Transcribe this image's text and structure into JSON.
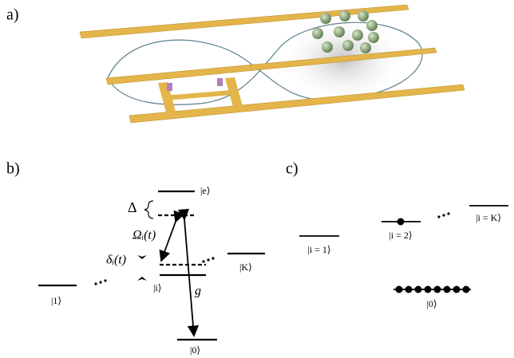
{
  "panel_a": {
    "label": "a)"
  },
  "panel_b": {
    "label": "b)",
    "excited": "|e⟩",
    "detuning": "Δ",
    "rabi": "Ωᵢ(t)",
    "shift": "δᵢ(t)",
    "level_i": "|i⟩",
    "level_K": "|K⟩",
    "level_1": "|1⟩",
    "coupling": "g",
    "ground": "|0⟩"
  },
  "panel_c": {
    "label": "c)",
    "level_1": "|i = 1⟩",
    "level_2": "|i = 2⟩",
    "level_K": "|i = K⟩",
    "ground": "|0⟩"
  }
}
